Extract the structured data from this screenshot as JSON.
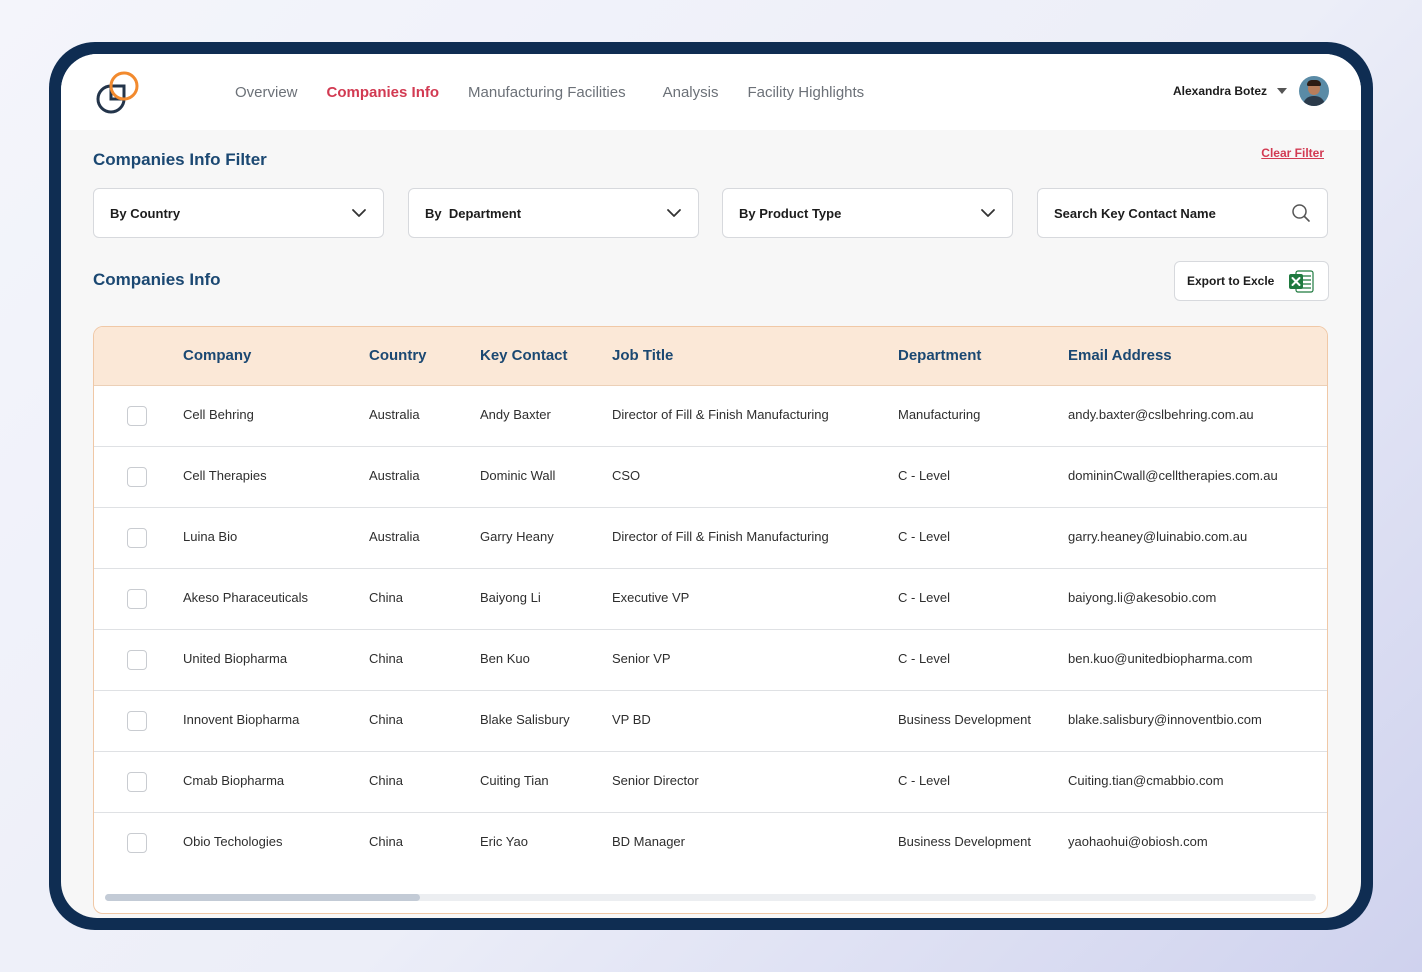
{
  "nav": {
    "links": [
      "Overview",
      "Companies Info",
      "Manufacturing Facilities",
      "Analysis",
      "Facility Highlights"
    ],
    "active": "Companies Info",
    "user_name": "Alexandra Botez"
  },
  "filter": {
    "title": "Companies Info Filter",
    "clear_label": "Clear Filter",
    "country_label": "By Country",
    "department_label": "By  Department",
    "product_label": "By Product Type",
    "search_placeholder": "Search Key Contact Name"
  },
  "info": {
    "title": "Companies Info",
    "export_label": "Export to Excle"
  },
  "table": {
    "headers": [
      "Company",
      "Country",
      "Key Contact",
      "Job Title",
      "Department",
      "Email Address"
    ],
    "rows": [
      [
        "Cell Behring",
        "Australia",
        "Andy Baxter",
        "Director of Fill & Finish Manufacturing",
        "Manufacturing",
        "andy.baxter@cslbehring.com.au"
      ],
      [
        "Cell Therapies",
        "Australia",
        "Dominic Wall",
        "CSO",
        "C - Level",
        "domininCwall@celltherapies.com.au"
      ],
      [
        "Luina Bio",
        "Australia",
        "Garry  Heany",
        "Director of Fill & Finish Manufacturing",
        "C - Level",
        "garry.heaney@luinabio.com.au"
      ],
      [
        "Akeso Pharaceuticals",
        "China",
        "Baiyong Li",
        "Executive VP",
        "C - Level",
        "baiyong.li@akesobio.com"
      ],
      [
        "United Biopharma",
        "China",
        "Ben Kuo",
        "Senior VP",
        "C - Level",
        "ben.kuo@unitedbiopharma.com"
      ],
      [
        "Innovent Biopharma",
        "China",
        "Blake Salisbury",
        "VP BD",
        "Business Development",
        "blake.salisbury@innoventbio.com"
      ],
      [
        "Cmab Biopharma",
        "China",
        "Cuiting Tian",
        "Senior Director",
        "C - Level",
        "Cuiting.tian@cmabbio.com"
      ],
      [
        "Obio Techologies",
        "China",
        "Eric Yao",
        "BD Manager",
        "Business Development",
        "yaohaohui@obiosh.com"
      ]
    ],
    "scroll_fraction": 0.26
  },
  "colors": {
    "brand_navy": "#0f2d52",
    "accent_red": "#d23a52",
    "logo_orange": "#f28a2e",
    "header_bg": "#fbe8d7",
    "excel_green": "#1f7a3f"
  }
}
